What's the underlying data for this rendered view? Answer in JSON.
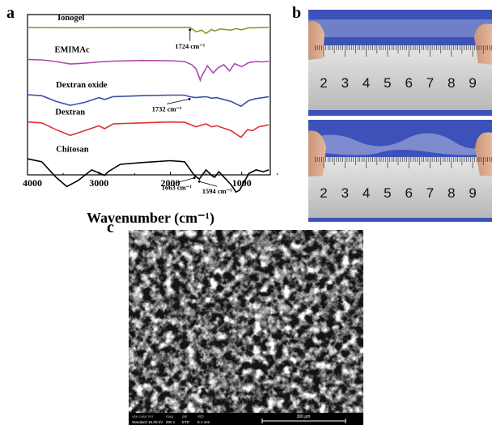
{
  "panels": {
    "a": "a",
    "b": "b",
    "c": "c"
  },
  "chart_data": {
    "type": "line",
    "title": "",
    "xlabel": "Wavenumber (cm⁻¹)",
    "ylabel": "",
    "xlim": [
      4000,
      600
    ],
    "xticks": [
      4000,
      3000,
      2000,
      1000
    ],
    "xtick_labels": [
      "4000",
      "3000",
      "2000",
      "1000"
    ],
    "series": [
      {
        "name": "Ionogel",
        "color": "#8a9a2b",
        "offset": 0.92,
        "scale": 0.05,
        "points": [
          [
            4000,
            0.0
          ],
          [
            3700,
            0.02
          ],
          [
            3400,
            0.05
          ],
          [
            3000,
            0.02
          ],
          [
            2300,
            0.0
          ],
          [
            1900,
            0.0
          ],
          [
            1724,
            0.0
          ],
          [
            1640,
            0.55
          ],
          [
            1560,
            0.35
          ],
          [
            1500,
            0.75
          ],
          [
            1420,
            0.25
          ],
          [
            1380,
            0.45
          ],
          [
            1300,
            0.2
          ],
          [
            1150,
            0.35
          ],
          [
            1080,
            0.15
          ],
          [
            1000,
            0.3
          ],
          [
            900,
            0.05
          ],
          [
            800,
            0.05
          ],
          [
            700,
            0.0
          ],
          [
            620,
            0.0
          ]
        ]
      },
      {
        "name": "EMIMAc",
        "color": "#b048b0",
        "offset": 0.72,
        "scale": 0.13,
        "points": [
          [
            4000,
            0.0
          ],
          [
            3800,
            0.02
          ],
          [
            3600,
            0.1
          ],
          [
            3400,
            0.22
          ],
          [
            3200,
            0.18
          ],
          [
            3000,
            0.12
          ],
          [
            2800,
            0.08
          ],
          [
            2400,
            0.05
          ],
          [
            2000,
            0.06
          ],
          [
            1800,
            0.1
          ],
          [
            1700,
            0.25
          ],
          [
            1640,
            0.45
          ],
          [
            1580,
            1.0
          ],
          [
            1560,
            0.8
          ],
          [
            1480,
            0.3
          ],
          [
            1400,
            0.65
          ],
          [
            1330,
            0.4
          ],
          [
            1250,
            0.25
          ],
          [
            1170,
            0.55
          ],
          [
            1100,
            0.2
          ],
          [
            1000,
            0.35
          ],
          [
            900,
            0.15
          ],
          [
            800,
            0.1
          ],
          [
            700,
            0.12
          ],
          [
            620,
            0.08
          ]
        ]
      },
      {
        "name": "Dextran oxide",
        "color": "#3a4fa8",
        "offset": 0.5,
        "scale": 0.12,
        "points": [
          [
            4000,
            0.0
          ],
          [
            3800,
            0.05
          ],
          [
            3600,
            0.35
          ],
          [
            3400,
            0.55
          ],
          [
            3200,
            0.4
          ],
          [
            3000,
            0.15
          ],
          [
            2920,
            0.25
          ],
          [
            2800,
            0.1
          ],
          [
            2400,
            0.05
          ],
          [
            2000,
            0.02
          ],
          [
            1800,
            0.02
          ],
          [
            1732,
            0.1
          ],
          [
            1650,
            0.15
          ],
          [
            1500,
            0.1
          ],
          [
            1420,
            0.18
          ],
          [
            1350,
            0.15
          ],
          [
            1150,
            0.35
          ],
          [
            1010,
            0.6
          ],
          [
            900,
            0.3
          ],
          [
            800,
            0.2
          ],
          [
            700,
            0.15
          ],
          [
            620,
            0.1
          ]
        ]
      },
      {
        "name": "Dextran",
        "color": "#e03030",
        "offset": 0.33,
        "scale": 0.12,
        "points": [
          [
            4000,
            0.0
          ],
          [
            3800,
            0.05
          ],
          [
            3600,
            0.4
          ],
          [
            3400,
            0.7
          ],
          [
            3200,
            0.45
          ],
          [
            3000,
            0.2
          ],
          [
            2920,
            0.35
          ],
          [
            2800,
            0.1
          ],
          [
            2400,
            0.05
          ],
          [
            2000,
            0.0
          ],
          [
            1800,
            0.02
          ],
          [
            1640,
            0.25
          ],
          [
            1500,
            0.1
          ],
          [
            1420,
            0.25
          ],
          [
            1350,
            0.2
          ],
          [
            1150,
            0.45
          ],
          [
            1010,
            0.8
          ],
          [
            920,
            0.4
          ],
          [
            850,
            0.45
          ],
          [
            760,
            0.25
          ],
          [
            620,
            0.15
          ]
        ]
      },
      {
        "name": "Chitosan",
        "color": "#000000",
        "offset": 0.1,
        "scale": 0.23,
        "points": [
          [
            4000,
            0.0
          ],
          [
            3800,
            0.08
          ],
          [
            3600,
            0.5
          ],
          [
            3450,
            0.75
          ],
          [
            3300,
            0.6
          ],
          [
            3100,
            0.3
          ],
          [
            2920,
            0.45
          ],
          [
            2870,
            0.35
          ],
          [
            2700,
            0.15
          ],
          [
            2400,
            0.1
          ],
          [
            2000,
            0.05
          ],
          [
            1800,
            0.08
          ],
          [
            1663,
            0.45
          ],
          [
            1594,
            0.55
          ],
          [
            1500,
            0.3
          ],
          [
            1420,
            0.45
          ],
          [
            1380,
            0.5
          ],
          [
            1320,
            0.35
          ],
          [
            1150,
            0.7
          ],
          [
            1080,
            0.9
          ],
          [
            1030,
            0.85
          ],
          [
            900,
            0.4
          ],
          [
            800,
            0.3
          ],
          [
            700,
            0.35
          ],
          [
            620,
            0.3
          ]
        ]
      }
    ],
    "annotations": [
      {
        "text": "1724 cm⁻¹",
        "x": 1724,
        "series": "Ionogel"
      },
      {
        "text": "1732 cm⁻¹",
        "x": 1732,
        "series": "Dextran oxide"
      },
      {
        "text": "1663 cm⁻¹",
        "x": 1663,
        "series": "Chitosan"
      },
      {
        "text": "1594 cm⁻¹",
        "x": 1594,
        "series": "Chitosan"
      }
    ]
  },
  "photo": {
    "ruler_numbers": [
      "2",
      "3",
      "4",
      "5",
      "6",
      "7",
      "8",
      "9"
    ],
    "background": "#3d52b8"
  },
  "sem": {
    "info_labels": [
      "use case",
      "HV",
      "mag",
      "det",
      "WD"
    ],
    "info_values": [
      "Standard",
      "15.00 kV",
      "200 x",
      "ETD",
      "9.1 mm"
    ],
    "scale_label": "300 μm"
  }
}
